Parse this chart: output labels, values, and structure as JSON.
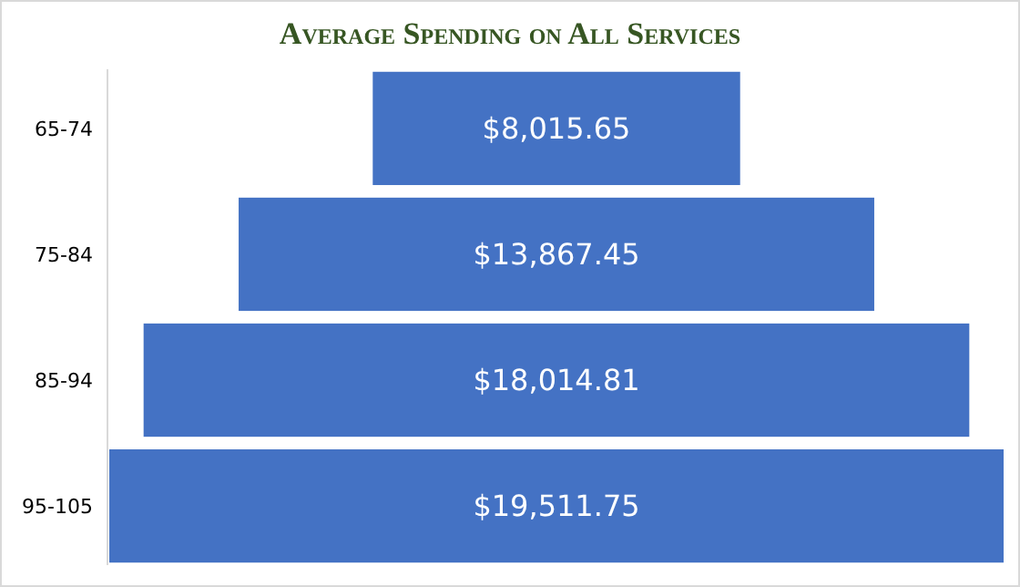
{
  "chart_data": {
    "type": "other",
    "title": "Average Spending on All Services",
    "categories": [
      "65-74",
      "75-84",
      "85-94",
      "95-105"
    ],
    "values": [
      8015.65,
      13867.45,
      18014.81,
      19511.75
    ],
    "value_labels": [
      "$8,015.65",
      "$13,867.45",
      "$18,014.81",
      "$19,511.75"
    ],
    "color": "#4472c4"
  }
}
